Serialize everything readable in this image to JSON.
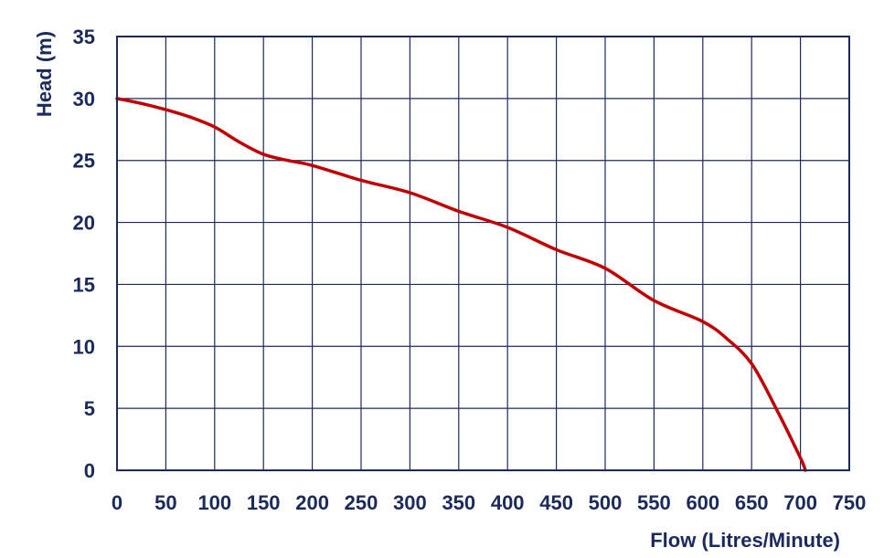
{
  "chart_data": {
    "type": "line",
    "title": "",
    "xlabel": "Flow (Litres/Minute)",
    "ylabel": "Head (m)",
    "xlim": [
      0,
      750
    ],
    "ylim": [
      0,
      35
    ],
    "x_ticks": [
      "0",
      "50",
      "100",
      "150",
      "200",
      "250",
      "300",
      "350",
      "400",
      "450",
      "500",
      "550",
      "600",
      "650",
      "700",
      "750"
    ],
    "y_ticks": [
      "0",
      "5",
      "10",
      "15",
      "20",
      "25",
      "30",
      "35"
    ],
    "grid": true,
    "legend": "none",
    "colors": {
      "line": "#c00000",
      "grid": "#1b2a5c",
      "text": "#1b2a5c"
    },
    "series": [
      {
        "x": [
          0,
          25,
          50,
          75,
          100,
          125,
          150,
          175,
          200,
          250,
          300,
          350,
          400,
          450,
          500,
          550,
          600,
          625,
          650,
          675,
          700,
          705
        ],
        "y": [
          30,
          29.6,
          29.1,
          28.5,
          27.7,
          26.5,
          25.5,
          25.0,
          24.6,
          23.4,
          22.4,
          20.9,
          19.6,
          17.8,
          16.3,
          13.7,
          12.0,
          10.6,
          8.6,
          5.0,
          1.0,
          0
        ]
      }
    ]
  }
}
